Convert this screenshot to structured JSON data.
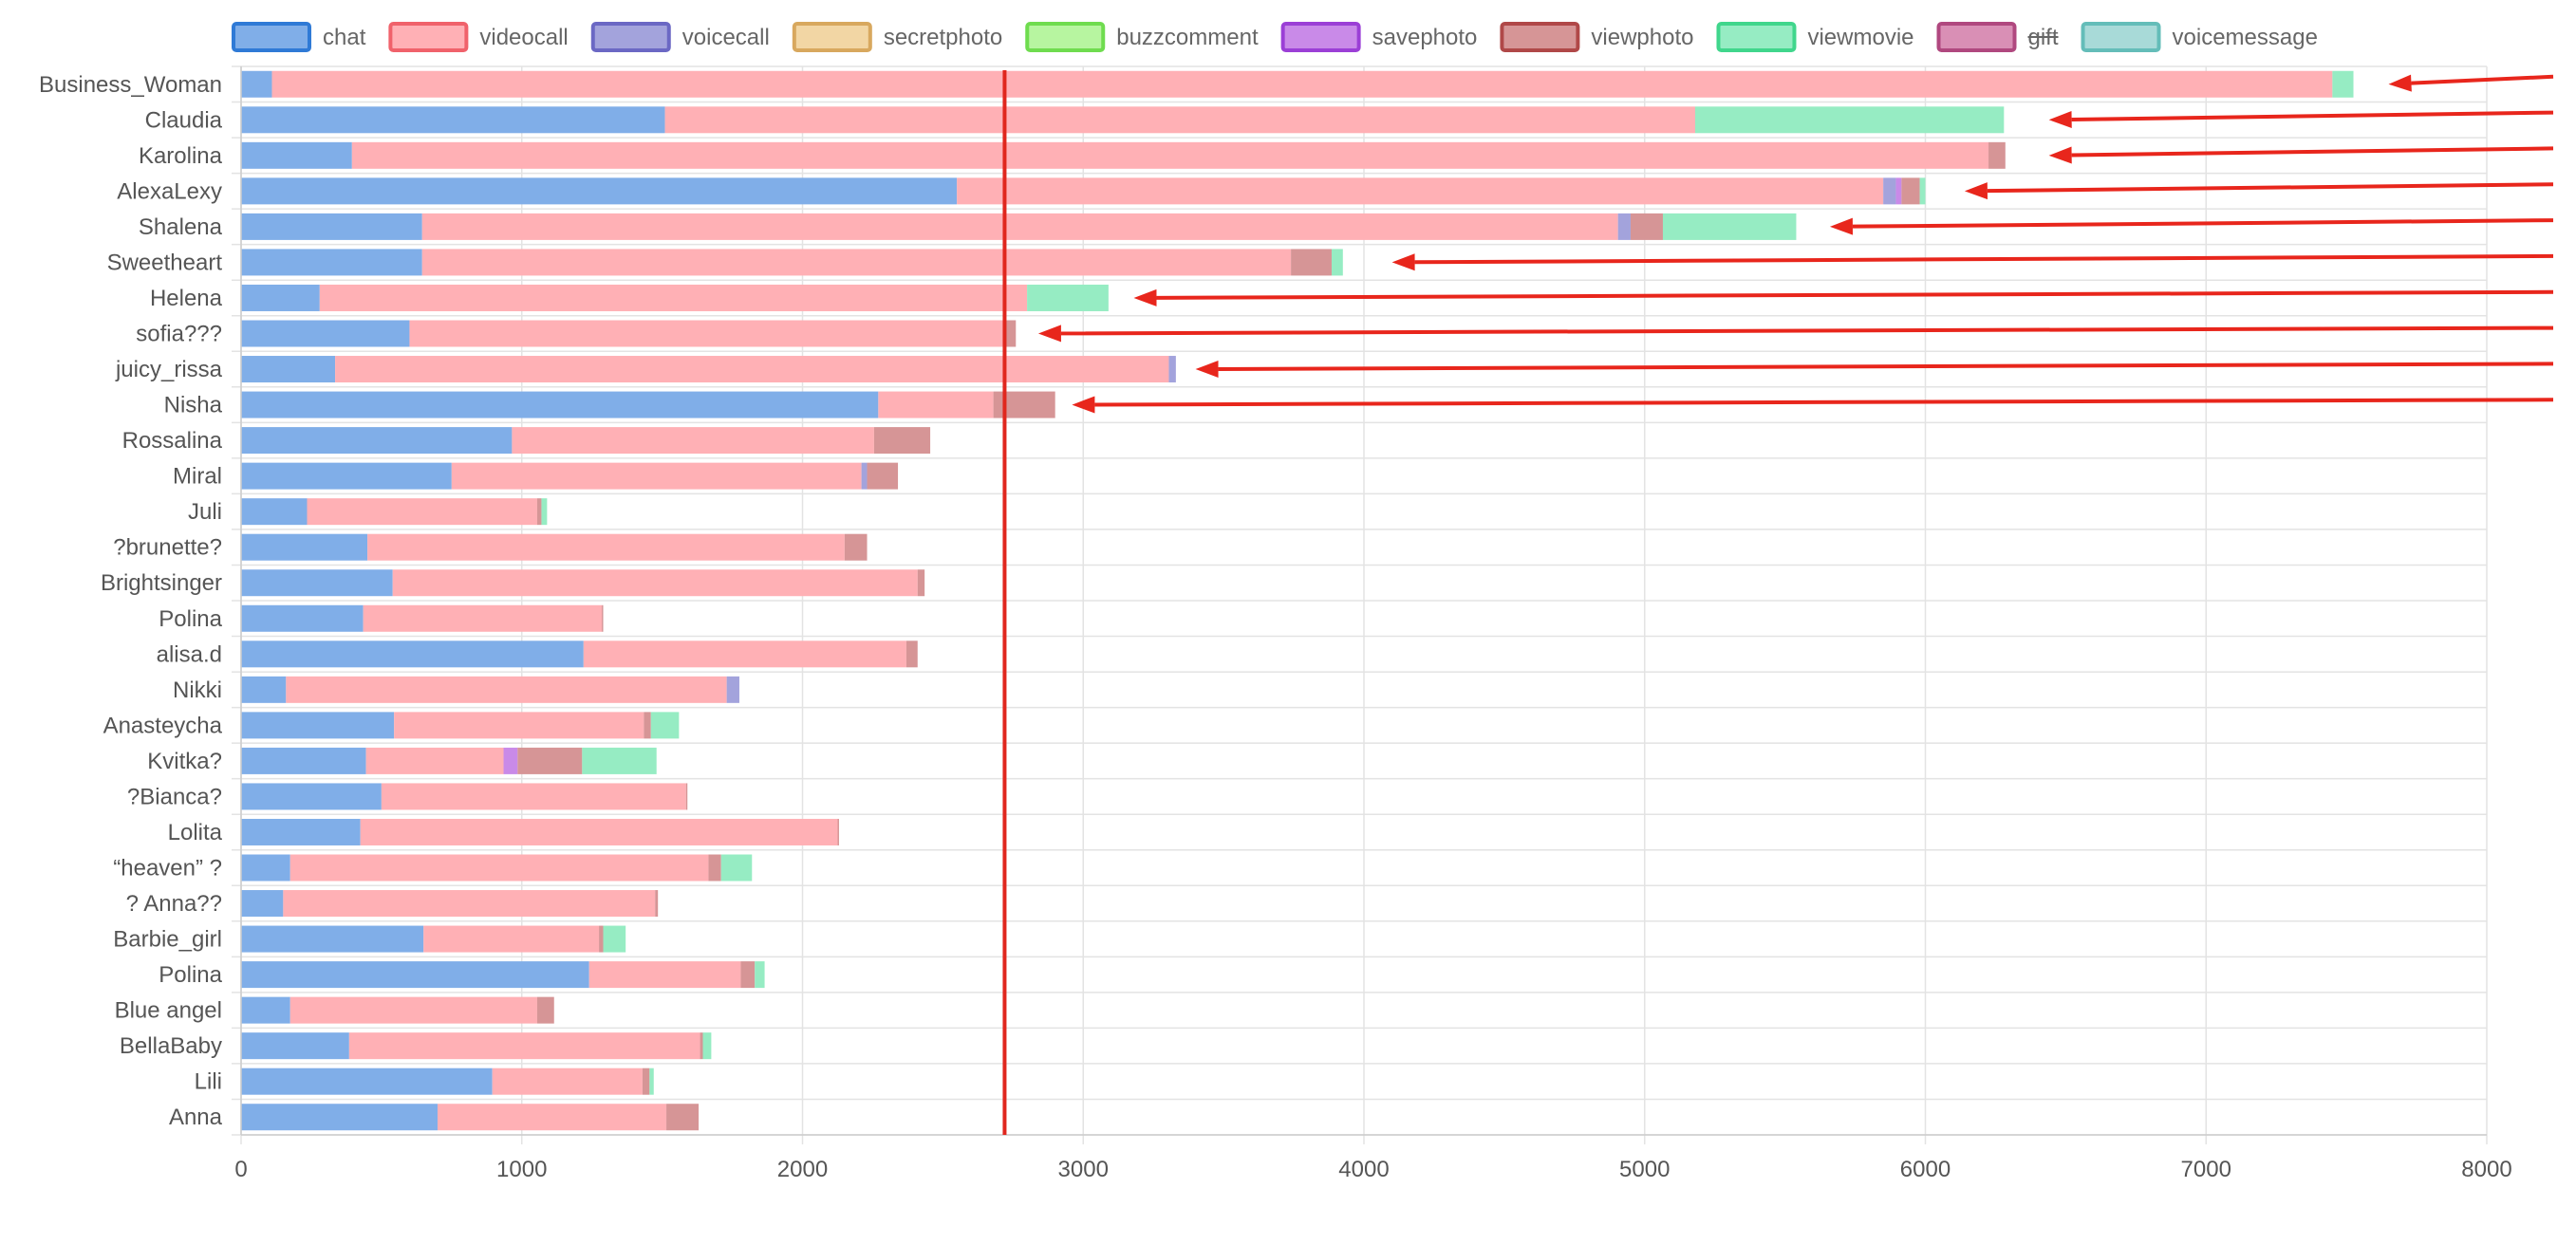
{
  "chart_data": {
    "type": "bar",
    "orientation": "horizontal",
    "stacked": true,
    "grid": true,
    "legend_position": "top",
    "xlim": [
      0,
      8000
    ],
    "x_ticks": [
      0,
      1000,
      2000,
      3000,
      4000,
      5000,
      6000,
      7000,
      8000
    ],
    "categories": [
      "Business_Woman",
      "Claudia",
      "Karolina",
      "AlexaLexy",
      "Shalena",
      "Sweetheart",
      "Helena",
      "sofia???",
      "juicy_rissa",
      "Nisha",
      "Rossalina",
      "Miral",
      "Juli",
      "?brunette?",
      "Brightsinger",
      "Polina",
      "alisa.d",
      "Nikki",
      "Anasteycha",
      "Kvitka?",
      "?Bianca?",
      "Lolita",
      "“heaven” ?",
      "? Anna??",
      "Barbie_girl",
      "Polina",
      "Blue angel",
      "BellaBaby",
      "Lili",
      "Anna"
    ],
    "series": [
      {
        "name": "chat",
        "color": "#80aee8",
        "border": "#2f7ad6",
        "hidden": false,
        "values": [
          110,
          1510,
          395,
          2550,
          645,
          645,
          280,
          600,
          335,
          2270,
          965,
          750,
          235,
          450,
          540,
          435,
          1220,
          160,
          545,
          445,
          500,
          425,
          175,
          150,
          650,
          1240,
          175,
          385,
          895,
          700
        ]
      },
      {
        "name": "videocall",
        "color": "#ffb0b5",
        "border": "#f0626b",
        "hidden": false,
        "values": [
          7340,
          3670,
          5830,
          3300,
          4260,
          3095,
          2520,
          2120,
          2970,
          410,
          1290,
          1460,
          820,
          1700,
          1870,
          850,
          1150,
          1570,
          890,
          490,
          1085,
          1700,
          1490,
          1325,
          625,
          540,
          880,
          1250,
          535,
          815
        ]
      },
      {
        "name": "voicecall",
        "color": "#a3a3dc",
        "border": "#6b68c4",
        "hidden": false,
        "values": [
          0,
          0,
          0,
          45,
          45,
          0,
          0,
          0,
          25,
          0,
          0,
          20,
          0,
          0,
          0,
          0,
          0,
          45,
          0,
          0,
          0,
          0,
          0,
          0,
          0,
          0,
          0,
          0,
          0,
          0
        ]
      },
      {
        "name": "secretphoto",
        "color": "#f2d6a4",
        "border": "#d8a85e",
        "hidden": false,
        "values": [
          0,
          0,
          0,
          0,
          0,
          0,
          0,
          0,
          0,
          0,
          0,
          0,
          0,
          0,
          0,
          0,
          0,
          0,
          0,
          0,
          0,
          0,
          0,
          0,
          0,
          0,
          0,
          0,
          0,
          0
        ]
      },
      {
        "name": "buzzcomment",
        "color": "#b7f5a0",
        "border": "#6fdc4f",
        "hidden": false,
        "values": [
          0,
          0,
          0,
          0,
          0,
          0,
          0,
          0,
          0,
          0,
          0,
          0,
          0,
          0,
          0,
          0,
          0,
          0,
          0,
          0,
          0,
          0,
          0,
          0,
          0,
          0,
          0,
          0,
          0,
          0
        ]
      },
      {
        "name": "savephoto",
        "color": "#c98ae8",
        "border": "#9b3fd6",
        "hidden": false,
        "values": [
          0,
          0,
          0,
          20,
          0,
          0,
          0,
          0,
          0,
          0,
          0,
          0,
          0,
          0,
          0,
          0,
          0,
          0,
          0,
          50,
          0,
          0,
          0,
          0,
          0,
          0,
          0,
          0,
          0,
          0
        ]
      },
      {
        "name": "viewphoto",
        "color": "#d69596",
        "border": "#b04848",
        "hidden": false,
        "values": [
          0,
          0,
          60,
          65,
          115,
          145,
          0,
          40,
          0,
          220,
          200,
          110,
          15,
          80,
          25,
          5,
          40,
          0,
          25,
          230,
          5,
          5,
          45,
          10,
          15,
          50,
          60,
          10,
          25,
          115
        ]
      },
      {
        "name": "viewmovie",
        "color": "#96ecc3",
        "border": "#40d68c",
        "hidden": false,
        "values": [
          75,
          1100,
          0,
          20,
          475,
          40,
          290,
          0,
          0,
          0,
          0,
          0,
          20,
          0,
          0,
          0,
          0,
          0,
          100,
          265,
          0,
          0,
          110,
          0,
          80,
          35,
          0,
          30,
          15,
          0
        ]
      },
      {
        "name": "gift",
        "color": "#d98fb5",
        "border": "#b0487f",
        "hidden": true,
        "values": [
          0,
          0,
          0,
          0,
          0,
          0,
          0,
          0,
          0,
          0,
          0,
          0,
          0,
          0,
          0,
          0,
          0,
          0,
          0,
          0,
          0,
          0,
          0,
          0,
          0,
          0,
          0,
          0,
          0,
          0
        ]
      },
      {
        "name": "voicemessage",
        "color": "#a8dad8",
        "border": "#64bdb9",
        "hidden": false,
        "values": [
          0,
          0,
          0,
          0,
          0,
          0,
          0,
          0,
          0,
          0,
          0,
          0,
          0,
          0,
          0,
          0,
          0,
          0,
          0,
          0,
          0,
          0,
          0,
          0,
          0,
          0,
          0,
          0,
          0,
          0
        ]
      }
    ],
    "reference_line": {
      "x": 2720,
      "color": "#e0271e"
    },
    "arrows": {
      "color": "#e8261c",
      "targets": [
        {
          "category": "Business_Woman",
          "x": 7650
        },
        {
          "category": "Claudia",
          "x": 6440
        },
        {
          "category": "Karolina",
          "x": 6440
        },
        {
          "category": "AlexaLexy",
          "x": 6140
        },
        {
          "category": "Shalena",
          "x": 5660
        },
        {
          "category": "Sweetheart",
          "x": 4100
        },
        {
          "category": "Helena",
          "x": 3180
        },
        {
          "category": "sofia???",
          "x": 2840
        },
        {
          "category": "juicy_rissa",
          "x": 3400
        },
        {
          "category": "Nisha",
          "x": 2960
        }
      ]
    }
  }
}
